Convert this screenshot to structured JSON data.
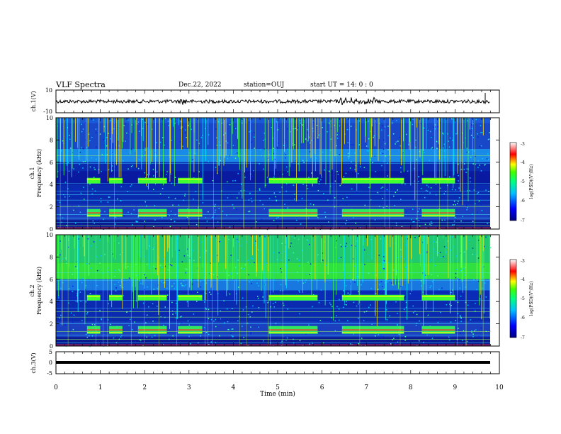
{
  "header": {
    "title": "VLF Spectra",
    "date": "Dec.22, 2022",
    "station": "station=OUJ",
    "start": "start  UT =  14: 0  : 0"
  },
  "chart_data": [
    {
      "type": "line",
      "panel": "waveform-ch1",
      "ylabel": "ch.1(V)",
      "ylim": [
        -10,
        10
      ],
      "yticks": [
        "10",
        "-10"
      ],
      "xlim": [
        0,
        10
      ],
      "description_series": [
        {
          "x_range": [
            0,
            6.4
          ],
          "amplitude_v": 1.5
        },
        {
          "x_range": [
            6.4,
            7.0
          ],
          "amplitude_v": 4
        },
        {
          "x_range": [
            7.0,
            9.8
          ],
          "amplitude_v": 1.5
        }
      ]
    },
    {
      "type": "heatmap",
      "panel": "spectrogram-ch1",
      "ylabel": "Frequency (kHz)",
      "channel_label": "ch.1",
      "ylim": [
        0,
        10
      ],
      "yticks": [
        "0",
        "2",
        "4",
        "6",
        "8",
        "10"
      ],
      "xlim": [
        0,
        10
      ],
      "colorbar": {
        "label": "log(PSD)(V²/Hz)",
        "range": [
          -7,
          -3
        ],
        "ticks": [
          "-3",
          "-4",
          "-5",
          "-6",
          "-7"
        ]
      }
    },
    {
      "type": "heatmap",
      "panel": "spectrogram-ch2",
      "ylabel": "Frequency (kHz)",
      "channel_label": "ch.2",
      "ylim": [
        0,
        10
      ],
      "yticks": [
        "0",
        "2",
        "4",
        "6",
        "8",
        "10"
      ],
      "xlim": [
        0,
        10
      ],
      "colorbar": {
        "label": "log(PSD)(V²/Hz)",
        "range": [
          -7,
          -3
        ],
        "ticks": [
          "-3",
          "-4",
          "-5",
          "-6",
          "-7"
        ]
      }
    },
    {
      "type": "line",
      "panel": "waveform-ch3",
      "ylabel": "ch.3(V)",
      "ylim": [
        -5,
        5
      ],
      "yticks": [
        "5",
        "0",
        "-5"
      ],
      "xlim": [
        0,
        10
      ],
      "series": [
        {
          "x": [
            0,
            9.8
          ],
          "values": [
            -0.5,
            -0.5
          ]
        }
      ]
    }
  ],
  "xaxis": {
    "label": "Time (min)",
    "ticks": [
      "0",
      "1",
      "2",
      "3",
      "4",
      "5",
      "6",
      "7",
      "8",
      "9",
      "10"
    ]
  },
  "colors": {
    "background": "#ffffff",
    "axis": "#000000",
    "colormap": [
      "#000080",
      "#0000ff",
      "#00a0ff",
      "#00ffff",
      "#00ff40",
      "#ffff00",
      "#ff8000",
      "#ff0000",
      "#ffffff"
    ]
  }
}
